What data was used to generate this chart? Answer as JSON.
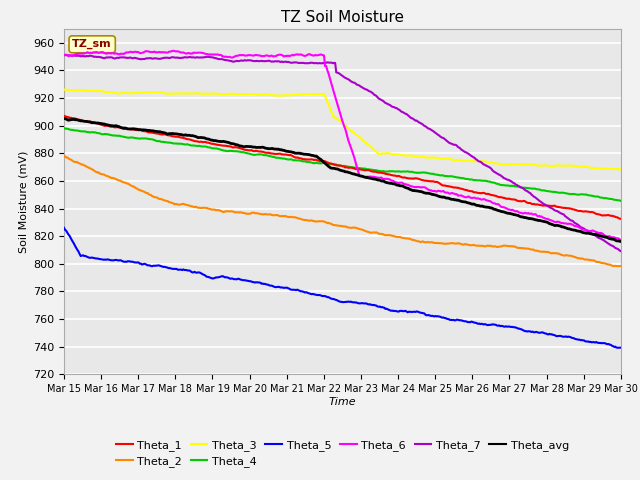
{
  "title": "TZ Soil Moisture",
  "xlabel": "Time",
  "ylabel": "Soil Moisture (mV)",
  "ylim": [
    720,
    970
  ],
  "yticks": [
    720,
    740,
    760,
    780,
    800,
    820,
    840,
    860,
    880,
    900,
    920,
    940,
    960
  ],
  "xtick_labels": [
    "Mar 15",
    "Mar 16",
    "Mar 17",
    "Mar 18",
    "Mar 19",
    "Mar 20",
    "Mar 21",
    "Mar 22",
    "Mar 23",
    "Mar 24",
    "Mar 25",
    "Mar 26",
    "Mar 27",
    "Mar 28",
    "Mar 29",
    "Mar 30"
  ],
  "background_color": "#e8e8e8",
  "grid_color": "#ffffff",
  "label_box_text": "TZ_sm",
  "colors": {
    "Theta_1": "#ff0000",
    "Theta_2": "#ff8800",
    "Theta_3": "#ffff00",
    "Theta_4": "#00cc00",
    "Theta_5": "#0000ff",
    "Theta_6": "#ff00ff",
    "Theta_7": "#aa00cc",
    "Theta_avg": "#000000"
  }
}
